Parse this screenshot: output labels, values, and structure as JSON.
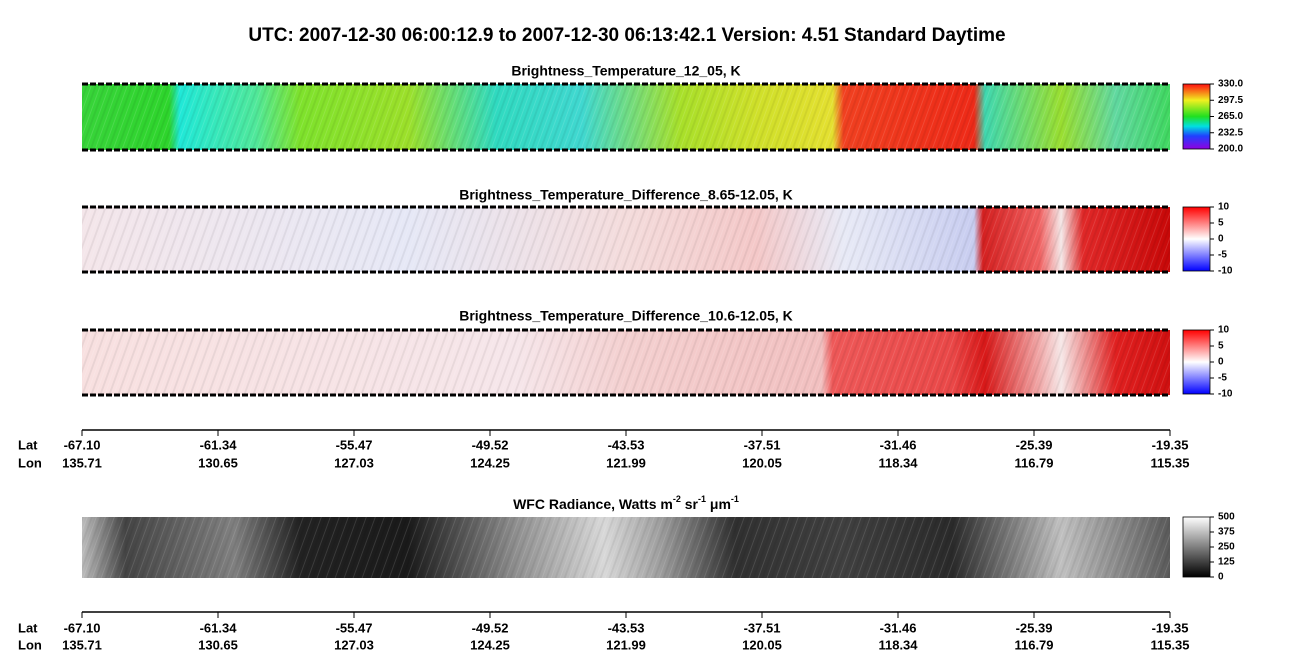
{
  "title": "UTC:  2007-12-30   06:00:12.9  to  2007-12-30   06:13:42.1    Version: 4.51  Standard Daytime",
  "panels": [
    {
      "title": "Brightness_Temperature_12_05, K",
      "colorbar": "rainbow",
      "ticks": [
        {
          "value": 200,
          "label": "200.0"
        },
        {
          "value": 232.5,
          "label": "232.5"
        },
        {
          "value": 265,
          "label": "265.0"
        },
        {
          "value": 297.5,
          "label": "297.5"
        },
        {
          "value": 330,
          "label": "330.0"
        }
      ]
    },
    {
      "title": "Brightness_Temperature_Difference_8.65-12.05, K",
      "colorbar": "diverging",
      "ticks": [
        -10,
        -5,
        0,
        5,
        10
      ]
    },
    {
      "title": "Brightness_Temperature_Difference_10.6-12.05, K",
      "colorbar": "diverging",
      "ticks": [
        -10,
        -5,
        0,
        5,
        10
      ]
    },
    {
      "title_parts": [
        "WFC Radiance, Watts m",
        "-2",
        " sr",
        "-1",
        " μm",
        "-1"
      ],
      "colorbar": "gray",
      "ticks": [
        0,
        125,
        250,
        375,
        500
      ]
    }
  ],
  "axis": {
    "lat_label": "Lat",
    "lon_label": "Lon",
    "lat": [
      "-67.10",
      "-61.34",
      "-55.47",
      "-49.52",
      "-43.53",
      "-37.51",
      "-31.46",
      "-25.39",
      "-19.35"
    ],
    "lon": [
      "135.71",
      "130.65",
      "127.03",
      "124.25",
      "121.99",
      "120.05",
      "118.34",
      "116.79",
      "115.35"
    ]
  }
}
